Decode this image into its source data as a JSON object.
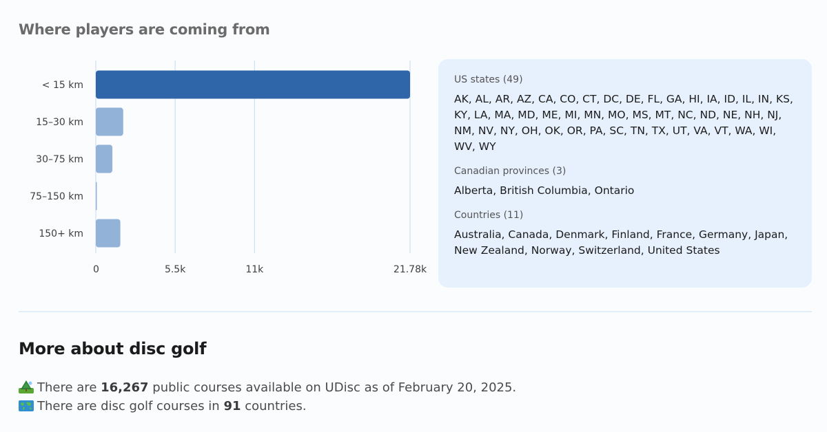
{
  "section": {
    "title": "Where players are coming from"
  },
  "chart_data": {
    "type": "bar",
    "orientation": "horizontal",
    "categories": [
      "< 15 km",
      "15–30 km",
      "30–75 km",
      "75–150 km",
      "150+ km"
    ],
    "values": [
      21780,
      1900,
      1150,
      40,
      1700
    ],
    "xlim": [
      0,
      21780
    ],
    "xticks": [
      {
        "value": 0,
        "label": "0"
      },
      {
        "value": 5500,
        "label": "5.5k"
      },
      {
        "value": 11000,
        "label": "11k"
      },
      {
        "value": 21780,
        "label": "21.78k"
      }
    ],
    "grid": true,
    "colors": {
      "highlight": "#2f66aa",
      "normal": "#93b2d8",
      "grid": "#cfe0f2"
    }
  },
  "panel": {
    "groups": [
      {
        "heading": "US states (49)",
        "text": "AK, AL, AR, AZ, CA, CO, CT, DC, DE, FL, GA, HI, IA, ID, IL, IN, KS, KY, LA, MA, MD, ME, MI, MN, MO, MS, MT, NC, ND, NE, NH, NJ, NM, NV, NY, OH, OK, OR, PA, SC, TN, TX, UT, VA, VT, WA, WI, WV, WY"
      },
      {
        "heading": "Canadian provinces (3)",
        "text": "Alberta, British Columbia, Ontario"
      },
      {
        "heading": "Countries (11)",
        "text": "Australia, Canada, Denmark, Finland, France, Germany, Japan, New Zealand, Norway, Switzerland, United States"
      }
    ]
  },
  "more": {
    "title": "More about disc golf",
    "fact1": {
      "icon": "park-icon",
      "pre": "There are ",
      "value": "16,267",
      "post": " public courses available on UDisc as of February 20, 2025."
    },
    "fact2": {
      "icon": "world-map-icon",
      "pre": "There are disc golf courses in ",
      "value": "91",
      "post": " countries."
    }
  }
}
